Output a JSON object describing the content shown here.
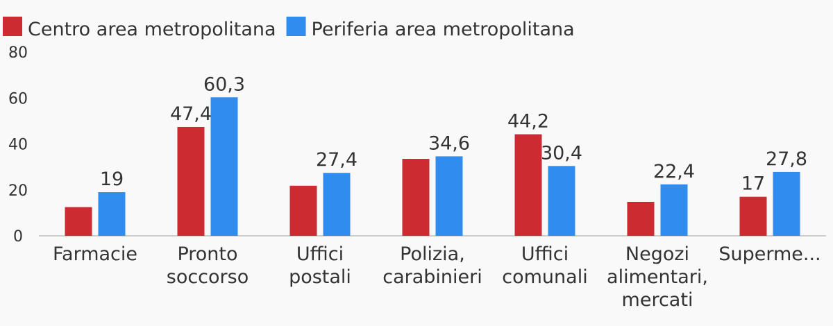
{
  "chart_data": {
    "type": "bar",
    "categories": [
      [
        "Farmacie"
      ],
      [
        "Pronto",
        "soccorso"
      ],
      [
        "Uffici",
        "postali"
      ],
      [
        "Polizia,",
        "carabinieri"
      ],
      [
        "Uffici",
        "comunali"
      ],
      [
        "Negozi",
        "alimentari,",
        "mercati"
      ],
      [
        "Superme..."
      ]
    ],
    "series": [
      {
        "name": "Centro area metropolitana",
        "color": "#cc2b31",
        "values": [
          12.5,
          47.4,
          21.8,
          33.5,
          44.2,
          14.8,
          17
        ],
        "labels": [
          "",
          "47,4",
          "",
          "",
          "44,2",
          "",
          "17"
        ]
      },
      {
        "name": "Periferia area metropolitana",
        "color": "#318cef",
        "values": [
          19,
          60.3,
          27.4,
          34.6,
          30.4,
          22.4,
          27.8
        ],
        "labels": [
          "19",
          "60,3",
          "27,4",
          "34,6",
          "30,4",
          "22,4",
          "27,8"
        ]
      }
    ],
    "yticks": [
      "0",
      "20",
      "40",
      "60",
      "80"
    ],
    "ylim": [
      0,
      80
    ],
    "grid": false,
    "legend": "top-left"
  }
}
